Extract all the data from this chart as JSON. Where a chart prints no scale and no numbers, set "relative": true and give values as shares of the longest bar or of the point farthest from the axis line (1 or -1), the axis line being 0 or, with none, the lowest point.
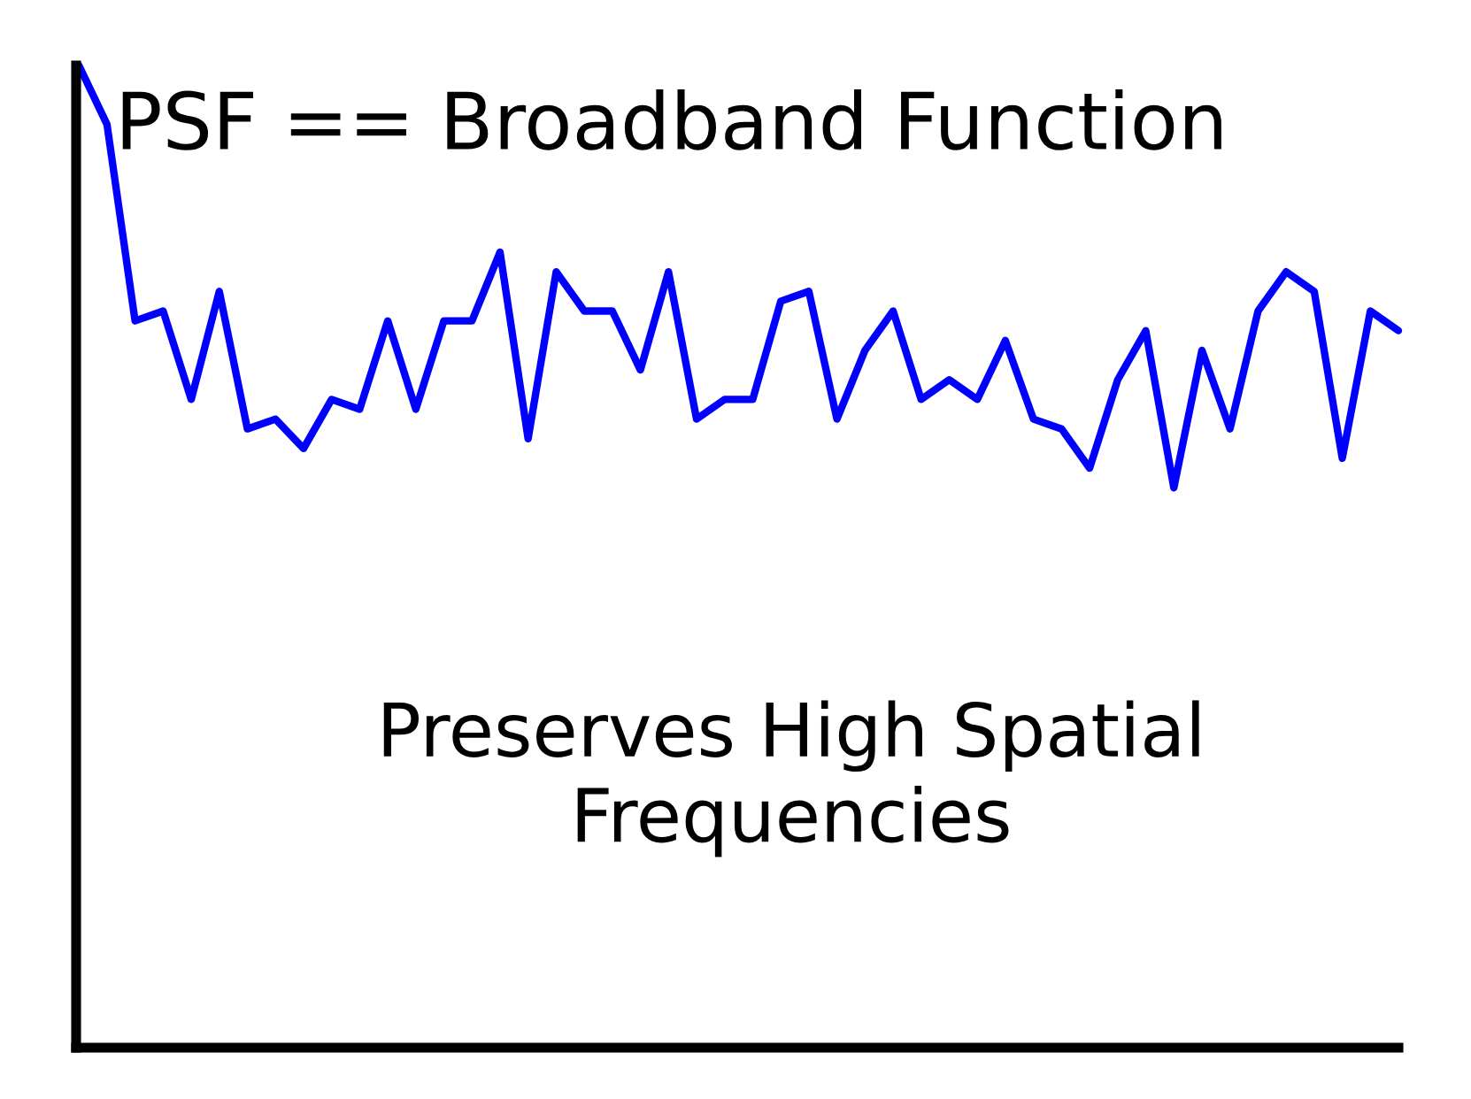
{
  "chart_data": {
    "type": "line",
    "title": "PSF == Broadband Function",
    "annotations": [
      "Preserves High Spatial\nFrequencies"
    ],
    "relative": true,
    "color": "#0000ff",
    "categories": [
      null,
      null,
      null,
      null,
      null,
      null,
      null,
      null,
      null,
      null,
      null,
      null,
      null,
      null,
      null,
      null,
      null,
      null,
      null,
      null,
      null,
      null,
      null,
      null,
      null,
      null,
      null,
      null,
      null,
      null,
      null,
      null,
      null,
      null,
      null,
      null,
      null,
      null,
      null,
      null,
      null,
      null,
      null,
      null,
      null,
      null,
      null,
      null
    ],
    "values": [
      1.0,
      0.94,
      0.74,
      0.75,
      0.66,
      0.77,
      0.63,
      0.64,
      0.61,
      0.66,
      0.65,
      0.74,
      0.65,
      0.74,
      0.74,
      0.81,
      0.62,
      0.79,
      0.75,
      0.75,
      0.69,
      0.79,
      0.64,
      0.66,
      0.66,
      0.76,
      0.77,
      0.64,
      0.71,
      0.75,
      0.66,
      0.68,
      0.66,
      0.72,
      0.64,
      0.63,
      0.59,
      0.68,
      0.73,
      0.57,
      0.71,
      0.63,
      0.75,
      0.79,
      0.77,
      0.6,
      0.75,
      0.73
    ],
    "grid": false,
    "legend": false
  }
}
